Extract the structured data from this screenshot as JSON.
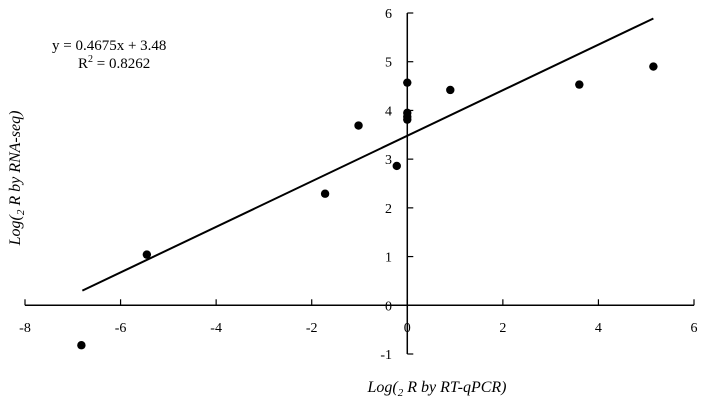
{
  "chart_data": {
    "type": "scatter",
    "title": "",
    "xlabel": "Log(2 R by RT-qPCR)",
    "ylabel": "Log(2 R by RNA-seq)",
    "xlabel_parts": {
      "prefix": "Log(",
      "sub": "2",
      "suffix": " R by RT-qPCR)"
    },
    "ylabel_parts": {
      "prefix": "Log(",
      "sub": "2",
      "suffix": " R by RNA-seq)"
    },
    "xlim": [
      -8,
      6
    ],
    "ylim": [
      -1,
      6
    ],
    "x_ticks": [
      -8,
      -6,
      -4,
      -2,
      0,
      2,
      4,
      6
    ],
    "y_ticks": [
      -1,
      0,
      1,
      2,
      3,
      4,
      5,
      6
    ],
    "grid": false,
    "legend": "none",
    "series": [
      {
        "points": [
          {
            "x": -6.82,
            "y": -0.82
          },
          {
            "x": -5.45,
            "y": 1.04
          },
          {
            "x": -1.72,
            "y": 2.29
          },
          {
            "x": -1.02,
            "y": 3.69
          },
          {
            "x": -0.22,
            "y": 2.86
          },
          {
            "x": 0.0,
            "y": 3.81
          },
          {
            "x": 0.0,
            "y": 3.87
          },
          {
            "x": 0.0,
            "y": 3.95
          },
          {
            "x": 0.0,
            "y": 4.57
          },
          {
            "x": 0.9,
            "y": 4.42
          },
          {
            "x": 3.6,
            "y": 4.53
          },
          {
            "x": 5.15,
            "y": 4.9
          }
        ]
      }
    ],
    "trendline": {
      "slope": 0.4675,
      "intercept": 3.48,
      "x_range": [
        -6.8,
        5.15
      ],
      "equation": "y = 0.4675x + 3.48",
      "r2_prefix": "R",
      "r2_sup": "2",
      "r2_suffix": " = 0.8262"
    }
  }
}
